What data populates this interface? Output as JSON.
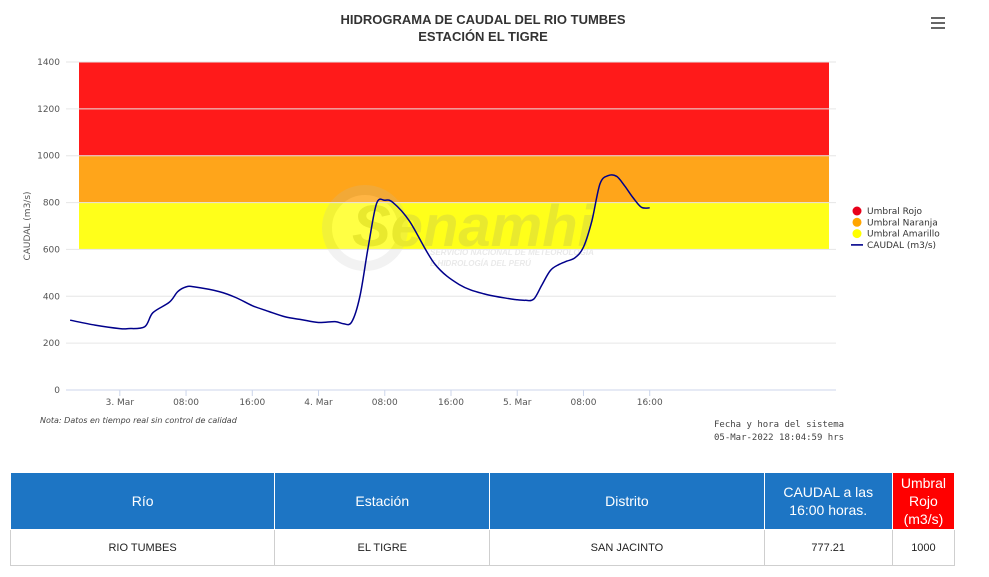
{
  "header": {
    "title_line1": "HIDROGRAMA DE CAUDAL DEL RIO TUMBES",
    "title_line2": "ESTACIÓN EL TIGRE",
    "menu_icon": "hamburger-menu-icon"
  },
  "watermark": {
    "brand": "Senamhi",
    "line1": "SERVICIO NACIONAL DE METEOROLOGÍA",
    "line2": "E HIDROLOGÍA DEL PERÚ"
  },
  "chart_data": {
    "type": "line",
    "title": "HIDROGRAMA DE CAUDAL DEL RIO TUMBES",
    "subtitle": "ESTACIÓN EL TIGRE",
    "ylabel": "CAUDAL (m3/s)",
    "ylim": [
      0,
      1400
    ],
    "yticks": [
      0,
      200,
      400,
      600,
      800,
      1000,
      1200,
      1400
    ],
    "xlim_hours": [
      -6.5,
      86.5
    ],
    "xticks": [
      {
        "hour": 0,
        "label": "3. Mar"
      },
      {
        "hour": 8,
        "label": "08:00"
      },
      {
        "hour": 16,
        "label": "16:00"
      },
      {
        "hour": 24,
        "label": "4. Mar"
      },
      {
        "hour": 32,
        "label": "08:00"
      },
      {
        "hour": 40,
        "label": "16:00"
      },
      {
        "hour": 48,
        "label": "5. Mar"
      },
      {
        "hour": 56,
        "label": "08:00"
      },
      {
        "hour": 64,
        "label": "16:00"
      }
    ],
    "bands": [
      {
        "name": "Umbral Amarillo",
        "from": 600,
        "to": 800,
        "color": "#ffff1a"
      },
      {
        "name": "Umbral Naranja",
        "from": 800,
        "to": 1000,
        "color": "#ffa51a"
      },
      {
        "name": "Umbral Rojo",
        "from": 1000,
        "to": 1400,
        "color": "#ff1a1a"
      }
    ],
    "series": [
      {
        "name": "CAUDAL (m3/s)",
        "color": "#00008b",
        "x": [
          "2022-03-02 18:00",
          "2022-03-02 21:00",
          "2022-03-03 00:00",
          "2022-03-03 01:00",
          "2022-03-03 03:00",
          "2022-03-03 04:00",
          "2022-03-03 06:00",
          "2022-03-03 07:00",
          "2022-03-03 08:00",
          "2022-03-03 09:00",
          "2022-03-03 12:00",
          "2022-03-03 14:00",
          "2022-03-03 16:00",
          "2022-03-03 18:00",
          "2022-03-03 20:00",
          "2022-03-03 22:00",
          "2022-03-04 00:00",
          "2022-03-04 02:00",
          "2022-03-04 03:00",
          "2022-03-04 04:00",
          "2022-03-04 05:00",
          "2022-03-04 06:00",
          "2022-03-04 07:00",
          "2022-03-04 08:00",
          "2022-03-04 09:00",
          "2022-03-04 11:00",
          "2022-03-04 14:00",
          "2022-03-04 17:00",
          "2022-03-04 20:00",
          "2022-03-04 23:00",
          "2022-03-05 00:00",
          "2022-03-05 01:00",
          "2022-03-05 02:00",
          "2022-03-05 03:00",
          "2022-03-05 04:00",
          "2022-03-05 05:00",
          "2022-03-05 06:00",
          "2022-03-05 07:00",
          "2022-03-05 08:00",
          "2022-03-05 09:00",
          "2022-03-05 10:00",
          "2022-03-05 11:00",
          "2022-03-05 12:00",
          "2022-03-05 13:00",
          "2022-03-05 14:00",
          "2022-03-05 15:00",
          "2022-03-05 16:00"
        ],
        "y": [
          298,
          277,
          262,
          262,
          270,
          330,
          375,
          420,
          440,
          440,
          420,
          395,
          360,
          335,
          312,
          300,
          288,
          292,
          283,
          290,
          400,
          610,
          795,
          810,
          800,
          720,
          540,
          450,
          410,
          390,
          385,
          383,
          388,
          450,
          510,
          535,
          550,
          565,
          610,
          720,
          880,
          915,
          912,
          870,
          820,
          780,
          777.21
        ]
      }
    ],
    "legend": {
      "position": "right",
      "entries": [
        "Umbral Rojo",
        "Umbral Naranja",
        "Umbral Amarillo",
        "CAUDAL (m3/s)"
      ]
    },
    "grid": true
  },
  "footer": {
    "note": "Nota: Datos en tiempo real sin control de calidad",
    "system_date_label": "Fecha y hora del sistema",
    "system_date_value": "05-Mar-2022 18:04:59 hrs"
  },
  "table": {
    "headers": [
      "Río",
      "Estación",
      "Distrito",
      "CAUDAL a las 16:00 horas.",
      "Umbral Rojo (m3/s)"
    ],
    "row": [
      "RIO TUMBES",
      "EL TIGRE",
      "SAN JACINTO",
      "777.21",
      "1000"
    ]
  },
  "colors": {
    "table_header": "#1d75c4",
    "table_header_alert": "#ff0000",
    "series": "#00008b"
  }
}
